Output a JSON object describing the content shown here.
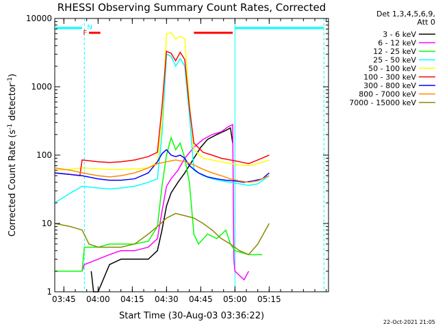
{
  "chart_data": {
    "type": "line",
    "title": "RHESSI Observing Summary Count Rates, Corrected",
    "xlabel": "Start Time (30-Aug-03 03:36:22)",
    "ylabel_main": "Corrected Count Rate (s",
    "ylabel_sup1": "-1",
    "ylabel_mid": " detector",
    "ylabel_sup2": "-1",
    "ylabel_end": ")",
    "yscale": "log",
    "ylim": [
      1,
      10000
    ],
    "xlim_min": [
      221,
      341
    ],
    "y_ticks": [
      {
        "value": 1,
        "label": "1"
      },
      {
        "value": 10,
        "label": "10"
      },
      {
        "value": 100,
        "label": "100"
      },
      {
        "value": 1000,
        "label": "1000"
      },
      {
        "value": 10000,
        "label": "10000"
      }
    ],
    "x_ticks": [
      {
        "min": 225,
        "label": "03:45"
      },
      {
        "min": 240,
        "label": "04:00"
      },
      {
        "min": 255,
        "label": "04:15"
      },
      {
        "min": 270,
        "label": "04:30"
      },
      {
        "min": 285,
        "label": "04:45"
      },
      {
        "min": 300,
        "label": "05:00"
      },
      {
        "min": 315,
        "label": "05:15"
      }
    ],
    "legend": {
      "header1": "Det 1,3,4,5,6,9,",
      "header2": "Att 0",
      "placement": "right"
    },
    "series": [
      {
        "name": "3 - 6 keV",
        "color": "#000000",
        "points": [
          [
            237,
            2
          ],
          [
            238,
            1
          ],
          [
            240,
            1
          ],
          [
            245,
            2.5
          ],
          [
            250,
            3
          ],
          [
            256,
            3
          ],
          [
            262,
            3
          ],
          [
            266,
            4
          ],
          [
            268,
            8
          ],
          [
            270,
            18
          ],
          [
            272,
            28
          ],
          [
            275,
            40
          ],
          [
            278,
            55
          ],
          [
            282,
            90
          ],
          [
            285,
            130
          ],
          [
            288,
            170
          ],
          [
            292,
            200
          ],
          [
            296,
            230
          ],
          [
            298,
            250
          ],
          [
            299,
            150
          ]
        ]
      },
      {
        "name": "6 - 12 keV",
        "color": "#ff00ff",
        "points": [
          [
            233,
            2
          ],
          [
            234,
            2.5
          ],
          [
            240,
            3
          ],
          [
            245,
            3.5
          ],
          [
            250,
            4
          ],
          [
            256,
            4
          ],
          [
            262,
            4.5
          ],
          [
            266,
            6
          ],
          [
            268,
            15
          ],
          [
            270,
            35
          ],
          [
            272,
            45
          ],
          [
            275,
            60
          ],
          [
            278,
            90
          ],
          [
            282,
            130
          ],
          [
            286,
            170
          ],
          [
            290,
            200
          ],
          [
            294,
            220
          ],
          [
            297,
            260
          ],
          [
            299,
            280
          ],
          [
            299.5,
            3
          ],
          [
            300,
            2
          ],
          [
            304,
            1.5
          ],
          [
            306,
            2
          ]
        ]
      },
      {
        "name": "12 - 25 keV",
        "color": "#00ff00",
        "points": [
          [
            221,
            2
          ],
          [
            233,
            2
          ],
          [
            234,
            4.5
          ],
          [
            240,
            4.5
          ],
          [
            245,
            5
          ],
          [
            250,
            5
          ],
          [
            256,
            5
          ],
          [
            262,
            5.5
          ],
          [
            266,
            9
          ],
          [
            268,
            35
          ],
          [
            270,
            100
          ],
          [
            272,
            180
          ],
          [
            274,
            120
          ],
          [
            276,
            150
          ],
          [
            278,
            90
          ],
          [
            280,
            40
          ],
          [
            282,
            7
          ],
          [
            284,
            5
          ],
          [
            288,
            7
          ],
          [
            292,
            6
          ],
          [
            296,
            8
          ],
          [
            298,
            5
          ],
          [
            300,
            4
          ],
          [
            306,
            3.5
          ],
          [
            312,
            3.5
          ]
        ]
      },
      {
        "name": "25 - 50 keV",
        "color": "#00ffff",
        "points": [
          [
            221,
            20
          ],
          [
            228,
            28
          ],
          [
            233,
            35
          ],
          [
            240,
            33
          ],
          [
            245,
            32
          ],
          [
            250,
            33
          ],
          [
            256,
            35
          ],
          [
            262,
            40
          ],
          [
            266,
            45
          ],
          [
            268,
            200
          ],
          [
            270,
            3000
          ],
          [
            272,
            2800
          ],
          [
            274,
            2000
          ],
          [
            276,
            2600
          ],
          [
            278,
            2000
          ],
          [
            280,
            400
          ],
          [
            282,
            60
          ],
          [
            286,
            50
          ],
          [
            290,
            45
          ],
          [
            294,
            42
          ],
          [
            298,
            40
          ],
          [
            302,
            38
          ],
          [
            306,
            36
          ],
          [
            310,
            38
          ],
          [
            315,
            50
          ]
        ]
      },
      {
        "name": "50 - 100 keV",
        "color": "#ffff00",
        "points": [
          [
            221,
            60
          ],
          [
            228,
            62
          ],
          [
            233,
            65
          ],
          [
            240,
            63
          ],
          [
            245,
            62
          ],
          [
            250,
            62
          ],
          [
            256,
            63
          ],
          [
            262,
            65
          ],
          [
            266,
            80
          ],
          [
            268,
            300
          ],
          [
            270,
            6000
          ],
          [
            272,
            6200
          ],
          [
            274,
            5000
          ],
          [
            276,
            5500
          ],
          [
            278,
            5000
          ],
          [
            280,
            600
          ],
          [
            282,
            120
          ],
          [
            286,
            90
          ],
          [
            290,
            85
          ],
          [
            294,
            80
          ],
          [
            298,
            75
          ],
          [
            302,
            72
          ],
          [
            306,
            70
          ],
          [
            310,
            75
          ],
          [
            315,
            85
          ]
        ]
      },
      {
        "name": "100 - 300 keV",
        "color": "#ff0000",
        "points": [
          [
            221,
            55
          ],
          [
            228,
            52
          ],
          [
            232,
            50
          ],
          [
            233,
            85
          ],
          [
            240,
            80
          ],
          [
            245,
            78
          ],
          [
            250,
            80
          ],
          [
            256,
            85
          ],
          [
            262,
            95
          ],
          [
            266,
            110
          ],
          [
            268,
            500
          ],
          [
            270,
            3300
          ],
          [
            272,
            3100
          ],
          [
            274,
            2400
          ],
          [
            276,
            3200
          ],
          [
            278,
            2500
          ],
          [
            280,
            500
          ],
          [
            282,
            150
          ],
          [
            286,
            110
          ],
          [
            290,
            100
          ],
          [
            294,
            90
          ],
          [
            298,
            85
          ],
          [
            302,
            80
          ],
          [
            306,
            75
          ],
          [
            310,
            85
          ],
          [
            315,
            100
          ]
        ]
      },
      {
        "name": "300 - 800 keV",
        "color": "#0000ff",
        "points": [
          [
            221,
            55
          ],
          [
            228,
            52
          ],
          [
            233,
            50
          ],
          [
            240,
            45
          ],
          [
            245,
            43
          ],
          [
            250,
            43
          ],
          [
            256,
            45
          ],
          [
            262,
            55
          ],
          [
            266,
            80
          ],
          [
            268,
            105
          ],
          [
            270,
            120
          ],
          [
            272,
            100
          ],
          [
            274,
            95
          ],
          [
            276,
            100
          ],
          [
            278,
            90
          ],
          [
            280,
            70
          ],
          [
            284,
            55
          ],
          [
            288,
            48
          ],
          [
            292,
            45
          ],
          [
            296,
            43
          ],
          [
            300,
            42
          ],
          [
            304,
            40
          ],
          [
            308,
            42
          ],
          [
            312,
            45
          ],
          [
            315,
            55
          ]
        ]
      },
      {
        "name": "800 - 7000 keV",
        "color": "#ff8800",
        "points": [
          [
            221,
            65
          ],
          [
            228,
            60
          ],
          [
            233,
            55
          ],
          [
            240,
            50
          ],
          [
            245,
            48
          ],
          [
            250,
            50
          ],
          [
            256,
            55
          ],
          [
            262,
            65
          ],
          [
            266,
            75
          ],
          [
            270,
            80
          ],
          [
            274,
            85
          ],
          [
            278,
            80
          ],
          [
            282,
            72
          ],
          [
            286,
            62
          ],
          [
            290,
            55
          ],
          [
            294,
            50
          ],
          [
            298,
            45
          ],
          [
            302,
            42
          ],
          [
            306,
            40
          ],
          [
            310,
            42
          ],
          [
            315,
            50
          ]
        ]
      },
      {
        "name": "7000 - 15000 keV",
        "color": "#888800",
        "points": [
          [
            221,
            10
          ],
          [
            228,
            9
          ],
          [
            233,
            8
          ],
          [
            236,
            5
          ],
          [
            240,
            4.5
          ],
          [
            245,
            4.5
          ],
          [
            250,
            4.5
          ],
          [
            256,
            5
          ],
          [
            262,
            7
          ],
          [
            266,
            9
          ],
          [
            270,
            12
          ],
          [
            274,
            14
          ],
          [
            278,
            13
          ],
          [
            282,
            12
          ],
          [
            286,
            10
          ],
          [
            290,
            8
          ],
          [
            294,
            6
          ],
          [
            298,
            5
          ],
          [
            302,
            4
          ],
          [
            306,
            3.5
          ],
          [
            310,
            5
          ],
          [
            315,
            10
          ]
        ]
      }
    ],
    "flag_markers": [
      {
        "label": "N",
        "color": "#00ffff",
        "at_min": 234
      },
      {
        "label": "F",
        "color": "#ff0000",
        "at_min": 234
      }
    ],
    "footer_date": "22-Oct-2021 21:05"
  }
}
